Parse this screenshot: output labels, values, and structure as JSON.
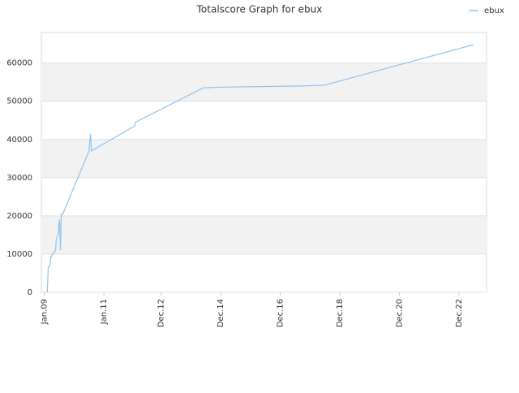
{
  "chart_data": {
    "type": "line",
    "title": "Totalscore Graph for ebux",
    "x": [
      2009.1,
      2009.13,
      2009.19,
      2009.21,
      2009.27,
      2009.38,
      2009.4,
      2009.46,
      2009.49,
      2009.51,
      2009.54,
      2009.57,
      2009.62,
      2010.5,
      2010.55,
      2010.58,
      2012.03,
      2012.05,
      2014.34,
      2014.96,
      2017.69,
      2018.4,
      2023.41
    ],
    "series": [
      {
        "name": "ebux",
        "color": "#8ec3ef",
        "values": [
          0,
          6500,
          7000,
          9000,
          10000,
          11000,
          14000,
          15000,
          18000,
          19000,
          11000,
          20500,
          20500,
          37000,
          41500,
          37000,
          43500,
          44500,
          53500,
          53700,
          54000,
          54200,
          64800
        ]
      }
    ],
    "xlim": [
      2008.9,
      2023.85
    ],
    "xticks": [
      {
        "value": 2009.0,
        "label": "Jan.09"
      },
      {
        "value": 2011.0,
        "label": "Jan.11"
      },
      {
        "value": 2012.92,
        "label": "Dec.12"
      },
      {
        "value": 2014.92,
        "label": "Dec.14"
      },
      {
        "value": 2016.92,
        "label": "Dec.16"
      },
      {
        "value": 2018.92,
        "label": "Dec.18"
      },
      {
        "value": 2020.92,
        "label": "Dec.20"
      },
      {
        "value": 2022.92,
        "label": "Dec.22"
      }
    ],
    "ylim": [
      0,
      68000
    ],
    "yticks": [
      0,
      10000,
      20000,
      30000,
      40000,
      50000,
      60000
    ],
    "grid": true,
    "legend": "top-right"
  }
}
